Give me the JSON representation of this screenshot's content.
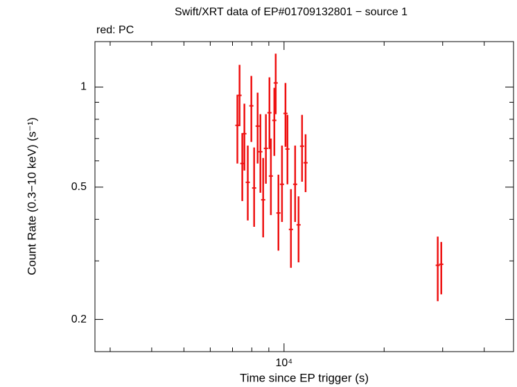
{
  "chart_data": {
    "type": "scatter",
    "title": "Swift/XRT data of EP#01709132801 − source 1",
    "subtitle": "red: PC",
    "x_label": "Time since EP trigger (s)",
    "y_label": "Count Rate (0.3−10 keV) (s⁻¹)",
    "xscale": "log",
    "yscale": "log",
    "xlim": [
      2700,
      49000
    ],
    "ylim": [
      0.16,
      1.37
    ],
    "xticks": [
      {
        "value": 10000,
        "label": "10⁴"
      }
    ],
    "xminorticks": [
      3000,
      4000,
      5000,
      6000,
      7000,
      8000,
      9000,
      20000,
      30000,
      40000
    ],
    "yticks": [
      0.2,
      0.5,
      1
    ],
    "yminorticks": [
      0.3,
      0.4,
      0.6,
      0.7,
      0.8,
      0.9
    ],
    "series": [
      {
        "name": "PC",
        "color": "#ee1111",
        "x": [
          7240,
          7350,
          7490,
          7600,
          7780,
          7975,
          8130,
          8330,
          8490,
          8655,
          8820,
          9040,
          9130,
          9350,
          9440,
          9620,
          9860,
          10100,
          10240,
          10490,
          10800,
          11060,
          11330,
          11610,
          28990,
          29710
        ],
        "values": [
          0.767,
          0.944,
          0.589,
          0.724,
          0.517,
          0.878,
          0.497,
          0.763,
          0.639,
          0.458,
          0.654,
          0.837,
          0.54,
          0.794,
          1.029,
          0.418,
          0.51,
          0.833,
          0.651,
          0.373,
          0.51,
          0.385,
          0.664,
          0.592,
          0.291,
          0.293
        ],
        "lower": [
          0.589,
          0.763,
          0.454,
          0.561,
          0.397,
          0.684,
          0.38,
          0.589,
          0.481,
          0.353,
          0.512,
          0.651,
          0.412,
          0.621,
          0.829,
          0.322,
          0.393,
          0.661,
          0.51,
          0.286,
          0.393,
          0.297,
          0.519,
          0.483,
          0.227,
          0.238
        ],
        "upper": [
          0.948,
          1.166,
          0.727,
          0.891,
          0.667,
          1.08,
          0.658,
          0.962,
          0.829,
          0.612,
          0.829,
          1.07,
          0.7,
          0.995,
          1.26,
          0.545,
          0.667,
          1.029,
          0.825,
          0.493,
          0.667,
          0.469,
          0.825,
          0.721,
          0.355,
          0.342
        ]
      }
    ]
  }
}
